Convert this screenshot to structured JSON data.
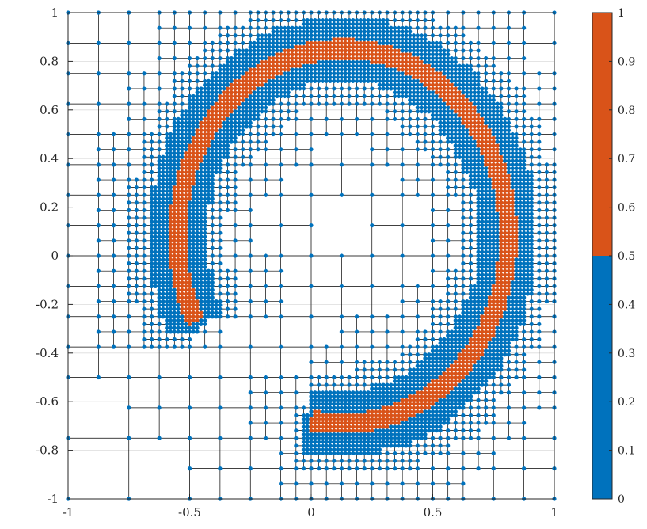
{
  "chart_data": {
    "type": "scatter",
    "title": "",
    "xlabel": "",
    "ylabel": "",
    "xlim": [
      -1,
      1
    ],
    "ylim": [
      -1,
      1
    ],
    "xticks": [
      -1,
      -0.5,
      0,
      0.5,
      1
    ],
    "yticks": [
      -1,
      -0.8,
      -0.6,
      -0.4,
      -0.2,
      0,
      0.2,
      0.4,
      0.6,
      0.8,
      1
    ],
    "xtick_labels": [
      "-1",
      "-0.5",
      "0",
      "0.5",
      "1"
    ],
    "ytick_labels": [
      "-1",
      "-0.8",
      "-0.6",
      "-0.4",
      "-0.2",
      "0",
      "0.2",
      "0.4",
      "0.6",
      "0.8",
      "1"
    ],
    "grid": true,
    "description_of_marks": "adaptive quadtree mesh; nodes colored by value (0 = blue, 1 = orange)",
    "mesh": {
      "domain": [
        -1,
        1,
        -1,
        1
      ],
      "base_level": 3,
      "max_level": 7,
      "refine_band_center": [
        0.13,
        0.08
      ],
      "refine_band_radius_x": 0.68,
      "refine_band_radius_y": 0.77
    },
    "colorbar": {
      "range": [
        0,
        1
      ],
      "ticks": [
        0,
        0.1,
        0.2,
        0.3,
        0.4,
        0.5,
        0.6,
        0.7,
        0.8,
        0.9,
        1
      ],
      "tick_labels": [
        "0",
        "0.1",
        "0.2",
        "0.3",
        "0.4",
        "0.5",
        "0.6",
        "0.7",
        "0.8",
        "0.9",
        "1"
      ],
      "segments": [
        {
          "from": 0,
          "to": 0.5,
          "color": "#0072BD"
        },
        {
          "from": 0.5,
          "to": 1,
          "color": "#D95319"
        }
      ]
    },
    "colors": {
      "low": "#0072BD",
      "high": "#D95319",
      "mesh_line": "#000000",
      "grid": "#dcdcdc",
      "axis": "#262626"
    }
  }
}
